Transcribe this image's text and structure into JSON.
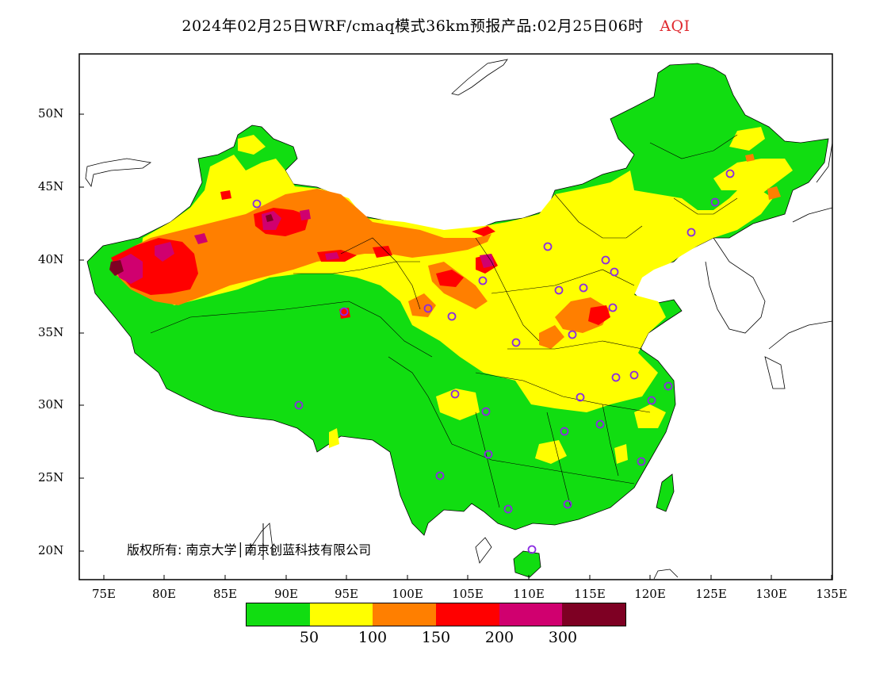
{
  "title": {
    "main": "2024年02月25日WRF/cmaq模式36km预报产品:02月25日06时",
    "variable": "AQI"
  },
  "axes": {
    "lat_labels": [
      "50N",
      "45N",
      "40N",
      "35N",
      "30N",
      "25N",
      "20N"
    ],
    "lon_labels": [
      "75E",
      "80E",
      "85E",
      "90E",
      "95E",
      "100E",
      "105E",
      "110E",
      "115E",
      "120E",
      "125E",
      "130E",
      "135E"
    ],
    "lon_range": [
      73,
      135
    ],
    "lat_range": [
      18,
      54
    ]
  },
  "copyright": "版权所有: 南京大学│南京创蓝科技有限公司",
  "legend": {
    "colors": [
      "#11dd11",
      "#ffff00",
      "#ff7f00",
      "#ff0000",
      "#d0006f",
      "#7e0023"
    ],
    "labels": [
      "50",
      "100",
      "150",
      "200",
      "300"
    ]
  },
  "colors": {
    "land_background": "#11dd11",
    "moderate": "#ffff00",
    "usg": "#ff7f00",
    "unhealthy": "#ff0000",
    "very_unhealthy": "#d0006f",
    "hazardous": "#7e0023",
    "station_marker": "#8a2be2"
  }
}
